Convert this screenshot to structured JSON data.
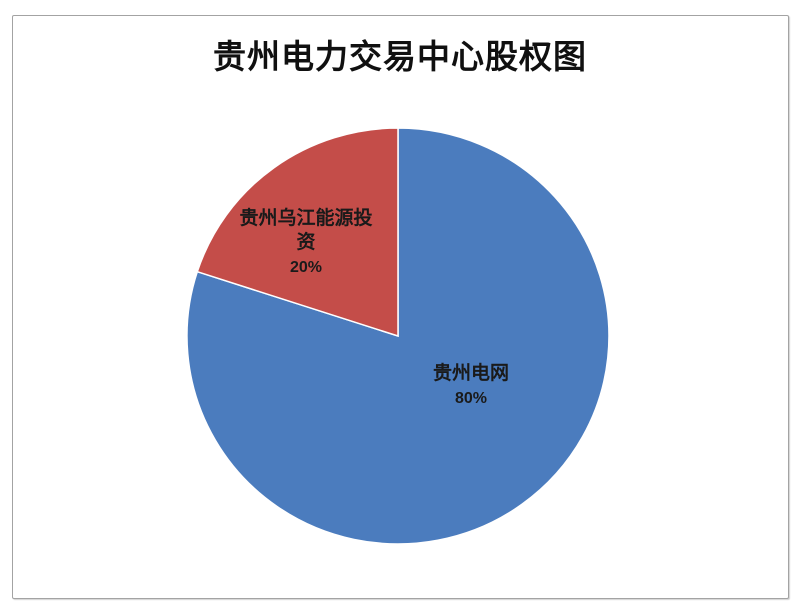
{
  "chart_data": {
    "type": "pie",
    "title": "贵州电力交易中心股权图",
    "legend": "none",
    "start_angle_deg": 0,
    "direction": "clockwise",
    "label_color": "#1a1a1a",
    "slices": [
      {
        "label": "贵州电网",
        "value": 80,
        "pct_label": "80%",
        "color": "#4B7CBE"
      },
      {
        "label": "贵州乌江能源投资",
        "value": 20,
        "pct_label": "20%",
        "color": "#C44D49"
      }
    ]
  },
  "frame": {
    "border_color": "#a3a3a3",
    "background": "#ffffff"
  }
}
